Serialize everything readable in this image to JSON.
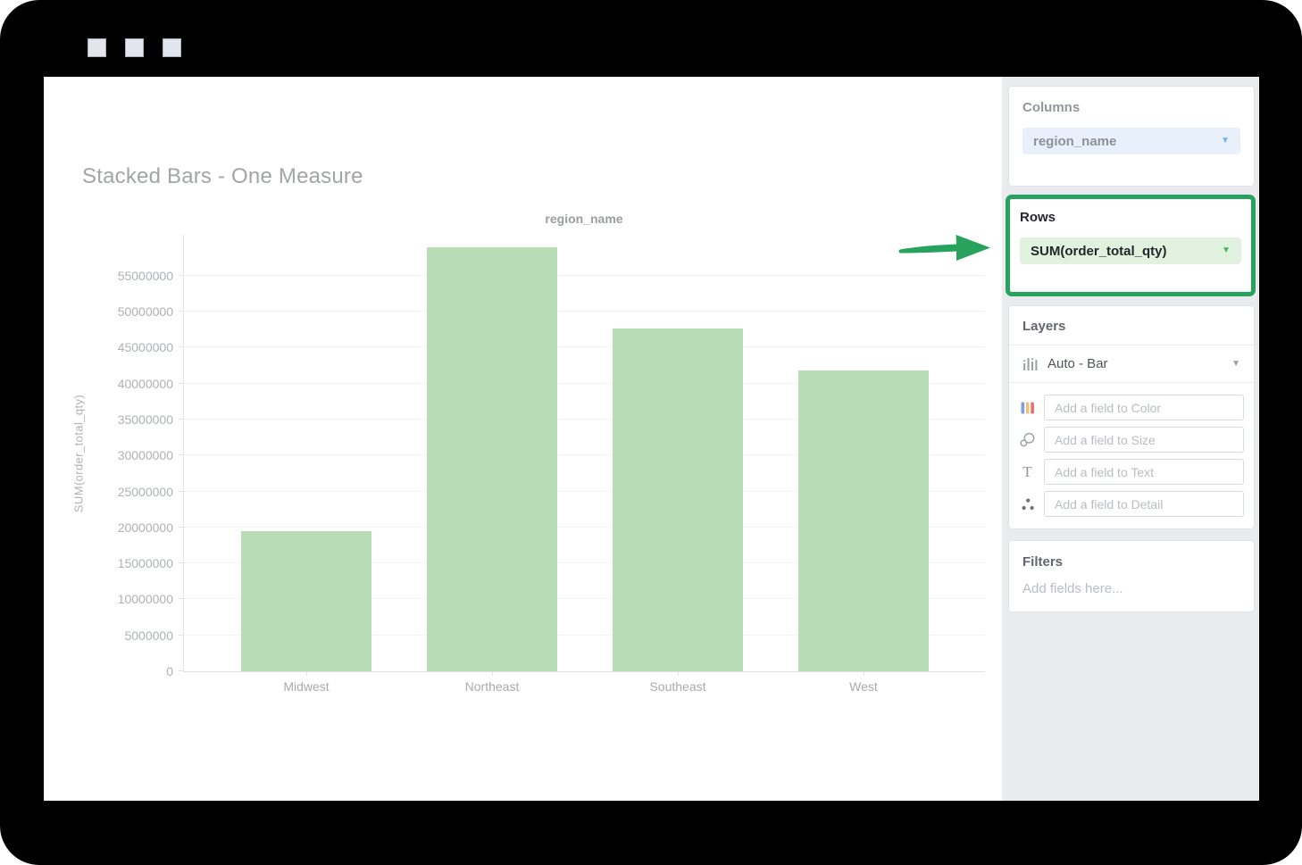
{
  "chart": {
    "title": "Stacked Bars - One Measure"
  },
  "chart_data": {
    "type": "bar",
    "title": "Stacked Bars - One Measure",
    "categories": [
      "Midwest",
      "Northeast",
      "Southeast",
      "West"
    ],
    "values": [
      19500000,
      59000000,
      47600000,
      41800000
    ],
    "xlabel": "region_name",
    "ylabel": "SUM(order_total_qty)",
    "ylim": [
      0,
      60800000
    ],
    "yticks": [
      0,
      5000000,
      10000000,
      15000000,
      20000000,
      25000000,
      30000000,
      35000000,
      40000000,
      45000000,
      50000000,
      55000000
    ],
    "grid": true,
    "legend": false,
    "bar_color": "#b8dcb5"
  },
  "sidebar": {
    "columns": {
      "header": "Columns",
      "pill": "region_name"
    },
    "rows": {
      "header": "Rows",
      "pill": "SUM(order_total_qty)"
    },
    "layers": {
      "header": "Layers",
      "layer_type": "Auto - Bar",
      "fields": [
        {
          "icon": "color-bars-icon",
          "placeholder": "Add a field to Color"
        },
        {
          "icon": "size-circles-icon",
          "placeholder": "Add a field to Size"
        },
        {
          "icon": "text-icon",
          "placeholder": "Add a field to Text"
        },
        {
          "icon": "detail-dots-icon",
          "placeholder": "Add a field to Detail"
        }
      ]
    },
    "filters": {
      "header": "Filters",
      "placeholder": "Add fields here..."
    }
  },
  "colors": {
    "annotation_green": "#27a35d",
    "bar_fill": "#b8dcb5",
    "columns_pill_bg": "#e7f0fb",
    "rows_pill_bg": "#e0f1de"
  }
}
